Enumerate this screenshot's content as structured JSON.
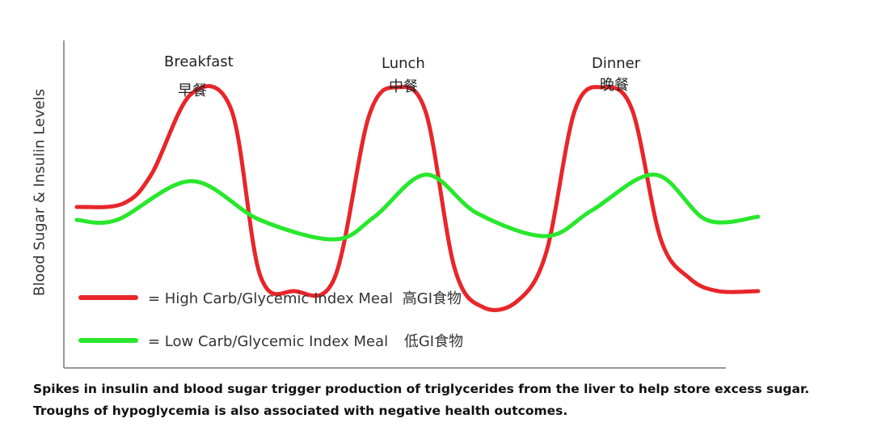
{
  "chart_data": {
    "type": "line",
    "title": "",
    "xlabel": "",
    "ylabel": "Blood Sugar & Insulin Levels",
    "meals": [
      {
        "name": "Breakfast",
        "name_zh": "早餐",
        "x": 1
      },
      {
        "name": "Lunch",
        "name_zh": "中餐",
        "x": 3
      },
      {
        "name": "Dinner",
        "name_zh": "晚餐",
        "x": 5
      }
    ],
    "xlim": [
      0,
      6
    ],
    "ylim": [
      0,
      10
    ],
    "series": [
      {
        "name": "= High Carb/Glycemic Index Meal",
        "name_zh": "高GI食物",
        "color": "#e8262a",
        "x": [
          0,
          0.4,
          0.65,
          1.0,
          1.35,
          1.6,
          1.9,
          2.25,
          2.55,
          2.8,
          3.05,
          3.3,
          3.55,
          3.85,
          4.1,
          4.35,
          4.6,
          4.85,
          5.1,
          5.35,
          5.6,
          5.95
        ],
        "y": [
          4.6,
          4.7,
          5.6,
          8.1,
          7.6,
          2.5,
          2.0,
          2.4,
          7.4,
          8.3,
          7.5,
          2.7,
          1.5,
          1.7,
          3.2,
          7.6,
          8.3,
          7.6,
          3.6,
          2.4,
          2.0,
          2.0
        ]
      },
      {
        "name": "= Low Carb/Glycemic Index Meal",
        "name_zh": "低GI食物",
        "color": "#27e82c",
        "x": [
          0,
          0.35,
          1.0,
          1.6,
          2.25,
          2.6,
          3.05,
          3.5,
          4.1,
          4.5,
          5.05,
          5.5,
          5.95
        ],
        "y": [
          4.2,
          4.2,
          5.4,
          4.2,
          3.6,
          4.3,
          5.6,
          4.4,
          3.7,
          4.5,
          5.6,
          4.2,
          4.3
        ]
      }
    ],
    "legend": "bottom-left"
  },
  "caption": {
    "line1": "Spikes in insulin and blood sugar trigger production of triglycerides from the liver to help store excess sugar.",
    "line2": "Troughs of hypoglycemia is also associated with negative health outcomes."
  }
}
